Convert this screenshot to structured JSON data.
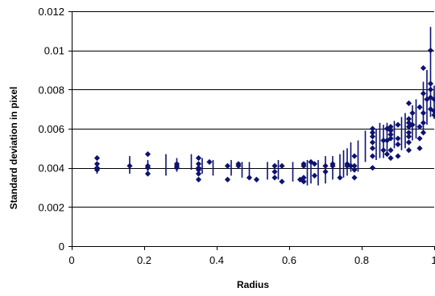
{
  "chart_data": {
    "type": "scatter",
    "title": "",
    "xlabel": "Radius",
    "ylabel": "Standard deviation in pixel",
    "xlim": [
      0,
      1
    ],
    "ylim": [
      0,
      0.012
    ],
    "x_ticks": [
      "0",
      "0.2",
      "0.4",
      "0.6",
      "0.8",
      "1"
    ],
    "y_ticks": [
      "0",
      "0.002",
      "0.004",
      "0.006",
      "0.008",
      "0.01",
      "0.012"
    ],
    "grid": "horizontal",
    "legend": "none",
    "marker": "diamond",
    "series": [
      {
        "points": [
          [
            0.07,
            0.0045
          ],
          [
            0.07,
            0.0042
          ],
          [
            0.07,
            0.004
          ],
          [
            0.07,
            0.0039
          ],
          [
            0.16,
            0.0041
          ],
          [
            0.21,
            0.0047
          ],
          [
            0.21,
            0.0041
          ],
          [
            0.21,
            0.004
          ],
          [
            0.21,
            0.0037
          ],
          [
            0.29,
            0.0042
          ],
          [
            0.29,
            0.0041
          ],
          [
            0.29,
            0.004
          ],
          [
            0.35,
            0.0045
          ],
          [
            0.35,
            0.0042
          ],
          [
            0.35,
            0.004
          ],
          [
            0.35,
            0.0039
          ],
          [
            0.35,
            0.0037
          ],
          [
            0.35,
            0.0034
          ],
          [
            0.38,
            0.0043
          ],
          [
            0.43,
            0.0041
          ],
          [
            0.43,
            0.0034
          ],
          [
            0.46,
            0.0042
          ],
          [
            0.46,
            0.0041
          ],
          [
            0.49,
            0.0035
          ],
          [
            0.51,
            0.0034
          ],
          [
            0.56,
            0.0041
          ],
          [
            0.56,
            0.0038
          ],
          [
            0.56,
            0.0035
          ],
          [
            0.58,
            0.0041
          ],
          [
            0.58,
            0.0033
          ],
          [
            0.63,
            0.0034
          ],
          [
            0.64,
            0.0042
          ],
          [
            0.64,
            0.0041
          ],
          [
            0.64,
            0.0035
          ],
          [
            0.64,
            0.0033
          ],
          [
            0.66,
            0.0043
          ],
          [
            0.67,
            0.0042
          ],
          [
            0.67,
            0.0036
          ],
          [
            0.7,
            0.0041
          ],
          [
            0.7,
            0.0038
          ],
          [
            0.72,
            0.0042
          ],
          [
            0.72,
            0.0041
          ],
          [
            0.74,
            0.0035
          ],
          [
            0.76,
            0.0042
          ],
          [
            0.76,
            0.0041
          ],
          [
            0.77,
            0.0041
          ],
          [
            0.78,
            0.0046
          ],
          [
            0.78,
            0.0041
          ],
          [
            0.78,
            0.0039
          ],
          [
            0.78,
            0.0035
          ],
          [
            0.83,
            0.006
          ],
          [
            0.83,
            0.0058
          ],
          [
            0.83,
            0.0056
          ],
          [
            0.83,
            0.0053
          ],
          [
            0.83,
            0.005
          ],
          [
            0.83,
            0.0046
          ],
          [
            0.83,
            0.004
          ],
          [
            0.86,
            0.0054
          ],
          [
            0.86,
            0.0049
          ],
          [
            0.87,
            0.006
          ],
          [
            0.87,
            0.0054
          ],
          [
            0.87,
            0.0047
          ],
          [
            0.88,
            0.0061
          ],
          [
            0.88,
            0.0059
          ],
          [
            0.88,
            0.0057
          ],
          [
            0.88,
            0.0055
          ],
          [
            0.88,
            0.0049
          ],
          [
            0.88,
            0.0045
          ],
          [
            0.9,
            0.0062
          ],
          [
            0.9,
            0.0055
          ],
          [
            0.9,
            0.0052
          ],
          [
            0.9,
            0.0046
          ],
          [
            0.93,
            0.0073
          ],
          [
            0.93,
            0.0065
          ],
          [
            0.93,
            0.0063
          ],
          [
            0.93,
            0.0061
          ],
          [
            0.93,
            0.0058
          ],
          [
            0.93,
            0.0056
          ],
          [
            0.93,
            0.0053
          ],
          [
            0.93,
            0.0049
          ],
          [
            0.94,
            0.0068
          ],
          [
            0.94,
            0.0062
          ],
          [
            0.96,
            0.0071
          ],
          [
            0.96,
            0.0061
          ],
          [
            0.96,
            0.0055
          ],
          [
            0.96,
            0.005
          ],
          [
            0.97,
            0.0091
          ],
          [
            0.97,
            0.0078
          ],
          [
            0.97,
            0.0068
          ],
          [
            0.97,
            0.0063
          ],
          [
            0.97,
            0.0058
          ],
          [
            0.98,
            0.0075
          ],
          [
            0.99,
            0.01
          ],
          [
            0.99,
            0.0083
          ],
          [
            0.99,
            0.008
          ],
          [
            0.99,
            0.0076
          ],
          [
            0.99,
            0.007
          ],
          [
            1.0,
            0.0075
          ],
          [
            1.0,
            0.0069
          ],
          [
            1.0,
            0.0067
          ]
        ]
      }
    ],
    "error_bars": [
      [
        0.07,
        0.0037,
        0.0043
      ],
      [
        0.16,
        0.0037,
        0.0046
      ],
      [
        0.21,
        0.0038,
        0.0044
      ],
      [
        0.26,
        0.0036,
        0.0047
      ],
      [
        0.29,
        0.0038,
        0.0045
      ],
      [
        0.33,
        0.0039,
        0.0047
      ],
      [
        0.36,
        0.0037,
        0.0045
      ],
      [
        0.39,
        0.0036,
        0.0044
      ],
      [
        0.44,
        0.0036,
        0.0044
      ],
      [
        0.47,
        0.0035,
        0.0043
      ],
      [
        0.49,
        0.0035,
        0.0043
      ],
      [
        0.54,
        0.0034,
        0.0043
      ],
      [
        0.57,
        0.0034,
        0.0044
      ],
      [
        0.61,
        0.0033,
        0.0043
      ],
      [
        0.65,
        0.0031,
        0.0044
      ],
      [
        0.66,
        0.0032,
        0.0043
      ],
      [
        0.68,
        0.0031,
        0.0044
      ],
      [
        0.7,
        0.0032,
        0.0046
      ],
      [
        0.72,
        0.0034,
        0.0046
      ],
      [
        0.74,
        0.0034,
        0.0047
      ],
      [
        0.75,
        0.0035,
        0.0049
      ],
      [
        0.76,
        0.0036,
        0.005
      ],
      [
        0.77,
        0.0038,
        0.0053
      ],
      [
        0.79,
        0.0038,
        0.0054
      ],
      [
        0.81,
        0.0043,
        0.0059
      ],
      [
        0.84,
        0.0044,
        0.006
      ],
      [
        0.85,
        0.0045,
        0.0063
      ],
      [
        0.86,
        0.0045,
        0.0062
      ],
      [
        0.87,
        0.0048,
        0.0063
      ],
      [
        0.89,
        0.005,
        0.0064
      ],
      [
        0.91,
        0.0049,
        0.0066
      ],
      [
        0.92,
        0.005,
        0.0068
      ],
      [
        0.94,
        0.0054,
        0.0072
      ],
      [
        0.95,
        0.0055,
        0.0075
      ],
      [
        0.97,
        0.0058,
        0.0084
      ],
      [
        0.98,
        0.0062,
        0.009
      ],
      [
        0.99,
        0.0066,
        0.0112
      ],
      [
        1.0,
        0.0065,
        0.0082
      ]
    ],
    "colors": {
      "marker": "#0d1270",
      "error_bar": "#0d1270",
      "grid": "#000000",
      "axis": "#000000"
    }
  }
}
